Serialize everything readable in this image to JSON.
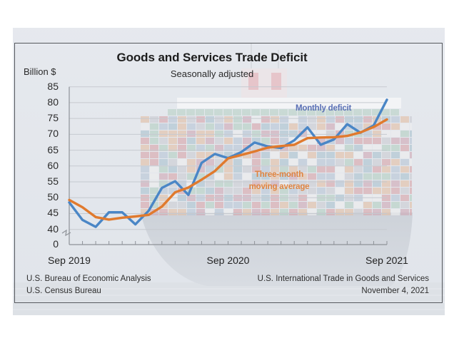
{
  "footer": {
    "left": [
      "U.S. Bureau of Economic Analysis",
      "U.S. Census Bureau"
    ],
    "right": [
      "U.S. International Trade in Goods and Services",
      "November 4, 2021"
    ]
  },
  "chart_data": {
    "type": "line",
    "title": "Goods and Services Trade Deficit",
    "subtitle": "Seasonally adjusted",
    "xlabel": "",
    "ylabel": "Billion $",
    "x": [
      "Sep 2019",
      "Oct 2019",
      "Nov 2019",
      "Dec 2019",
      "Jan 2020",
      "Feb 2020",
      "Mar 2020",
      "Apr 2020",
      "May 2020",
      "Jun 2020",
      "Jul 2020",
      "Aug 2020",
      "Sep 2020",
      "Oct 2020",
      "Nov 2020",
      "Dec 2020",
      "Jan 2021",
      "Feb 2021",
      "Mar 2021",
      "Apr 2021",
      "May 2021",
      "Jun 2021",
      "Jul 2021",
      "Aug 2021",
      "Sep 2021"
    ],
    "x_tick_labels": [
      "Sep 2019",
      "Sep 2020",
      "Sep 2021"
    ],
    "y_ticks": [
      0,
      40,
      45,
      50,
      55,
      60,
      65,
      70,
      75,
      80,
      85
    ],
    "ylim": [
      40,
      85
    ],
    "y_axis_break": "between 0 and 40",
    "grid": true,
    "legend": "inline labels next to lines",
    "series": [
      {
        "name": "Monthly deficit",
        "color": "#4a86c6",
        "label_color": "#5a70b5",
        "values": [
          48.5,
          43.0,
          40.8,
          45.4,
          45.4,
          41.6,
          45.9,
          53.1,
          55.2,
          50.9,
          61.0,
          63.8,
          62.5,
          64.4,
          67.4,
          66.2,
          65.7,
          68.1,
          72.2,
          66.7,
          68.4,
          73.2,
          70.5,
          72.8,
          80.9
        ]
      },
      {
        "name": "Three-month moving average",
        "label_lines": [
          "Three-month",
          "moving average"
        ],
        "color": "#e07a2e",
        "label_color": "#df8440",
        "values": [
          49.3,
          47.0,
          43.9,
          43.1,
          43.7,
          44.1,
          44.6,
          47.2,
          51.7,
          53.2,
          55.7,
          58.4,
          62.4,
          63.5,
          64.6,
          65.8,
          66.3,
          66.7,
          68.8,
          69.0,
          69.1,
          69.5,
          70.6,
          72.3,
          74.7
        ]
      }
    ]
  }
}
